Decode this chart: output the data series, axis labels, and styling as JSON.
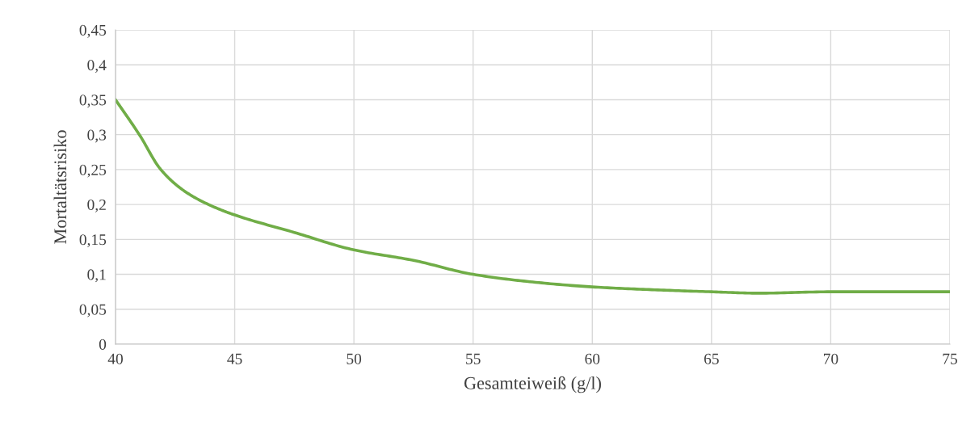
{
  "chart_data": {
    "type": "line",
    "xlabel": "Gesamteiweiß (g/l)",
    "ylabel": "Mortaltätsrisiko",
    "x": [
      40,
      41,
      41.9,
      42.9,
      43.9,
      45,
      47.5,
      50,
      52.5,
      55,
      57.5,
      60,
      62.5,
      65,
      67,
      70,
      72.5,
      75
    ],
    "series": [
      {
        "color": "#70ad47",
        "values": [
          0.35,
          0.3,
          0.25,
          0.219,
          0.2,
          0.185,
          0.16,
          0.135,
          0.12,
          0.1,
          0.089,
          0.082,
          0.078,
          0.075,
          0.073,
          0.075,
          0.075,
          0.075
        ]
      }
    ],
    "xlim": [
      40,
      75
    ],
    "xticks": [
      40,
      45,
      50,
      55,
      60,
      65,
      70,
      75
    ],
    "ylim": [
      0,
      0.45
    ],
    "yticks": [
      {
        "value": 0,
        "label": "0"
      },
      {
        "value": 0.05,
        "label": "0,05"
      },
      {
        "value": 0.1,
        "label": "0,1"
      },
      {
        "value": 0.15,
        "label": "0,15"
      },
      {
        "value": 0.2,
        "label": "0,2"
      },
      {
        "value": 0.25,
        "label": "0,25"
      },
      {
        "value": 0.3,
        "label": "0,3"
      },
      {
        "value": 0.35,
        "label": "0,35"
      },
      {
        "value": 0.4,
        "label": "0,4"
      },
      {
        "value": 0.45,
        "label": "0,45"
      }
    ],
    "grid": true,
    "marker": "none",
    "line_style": "solid"
  }
}
